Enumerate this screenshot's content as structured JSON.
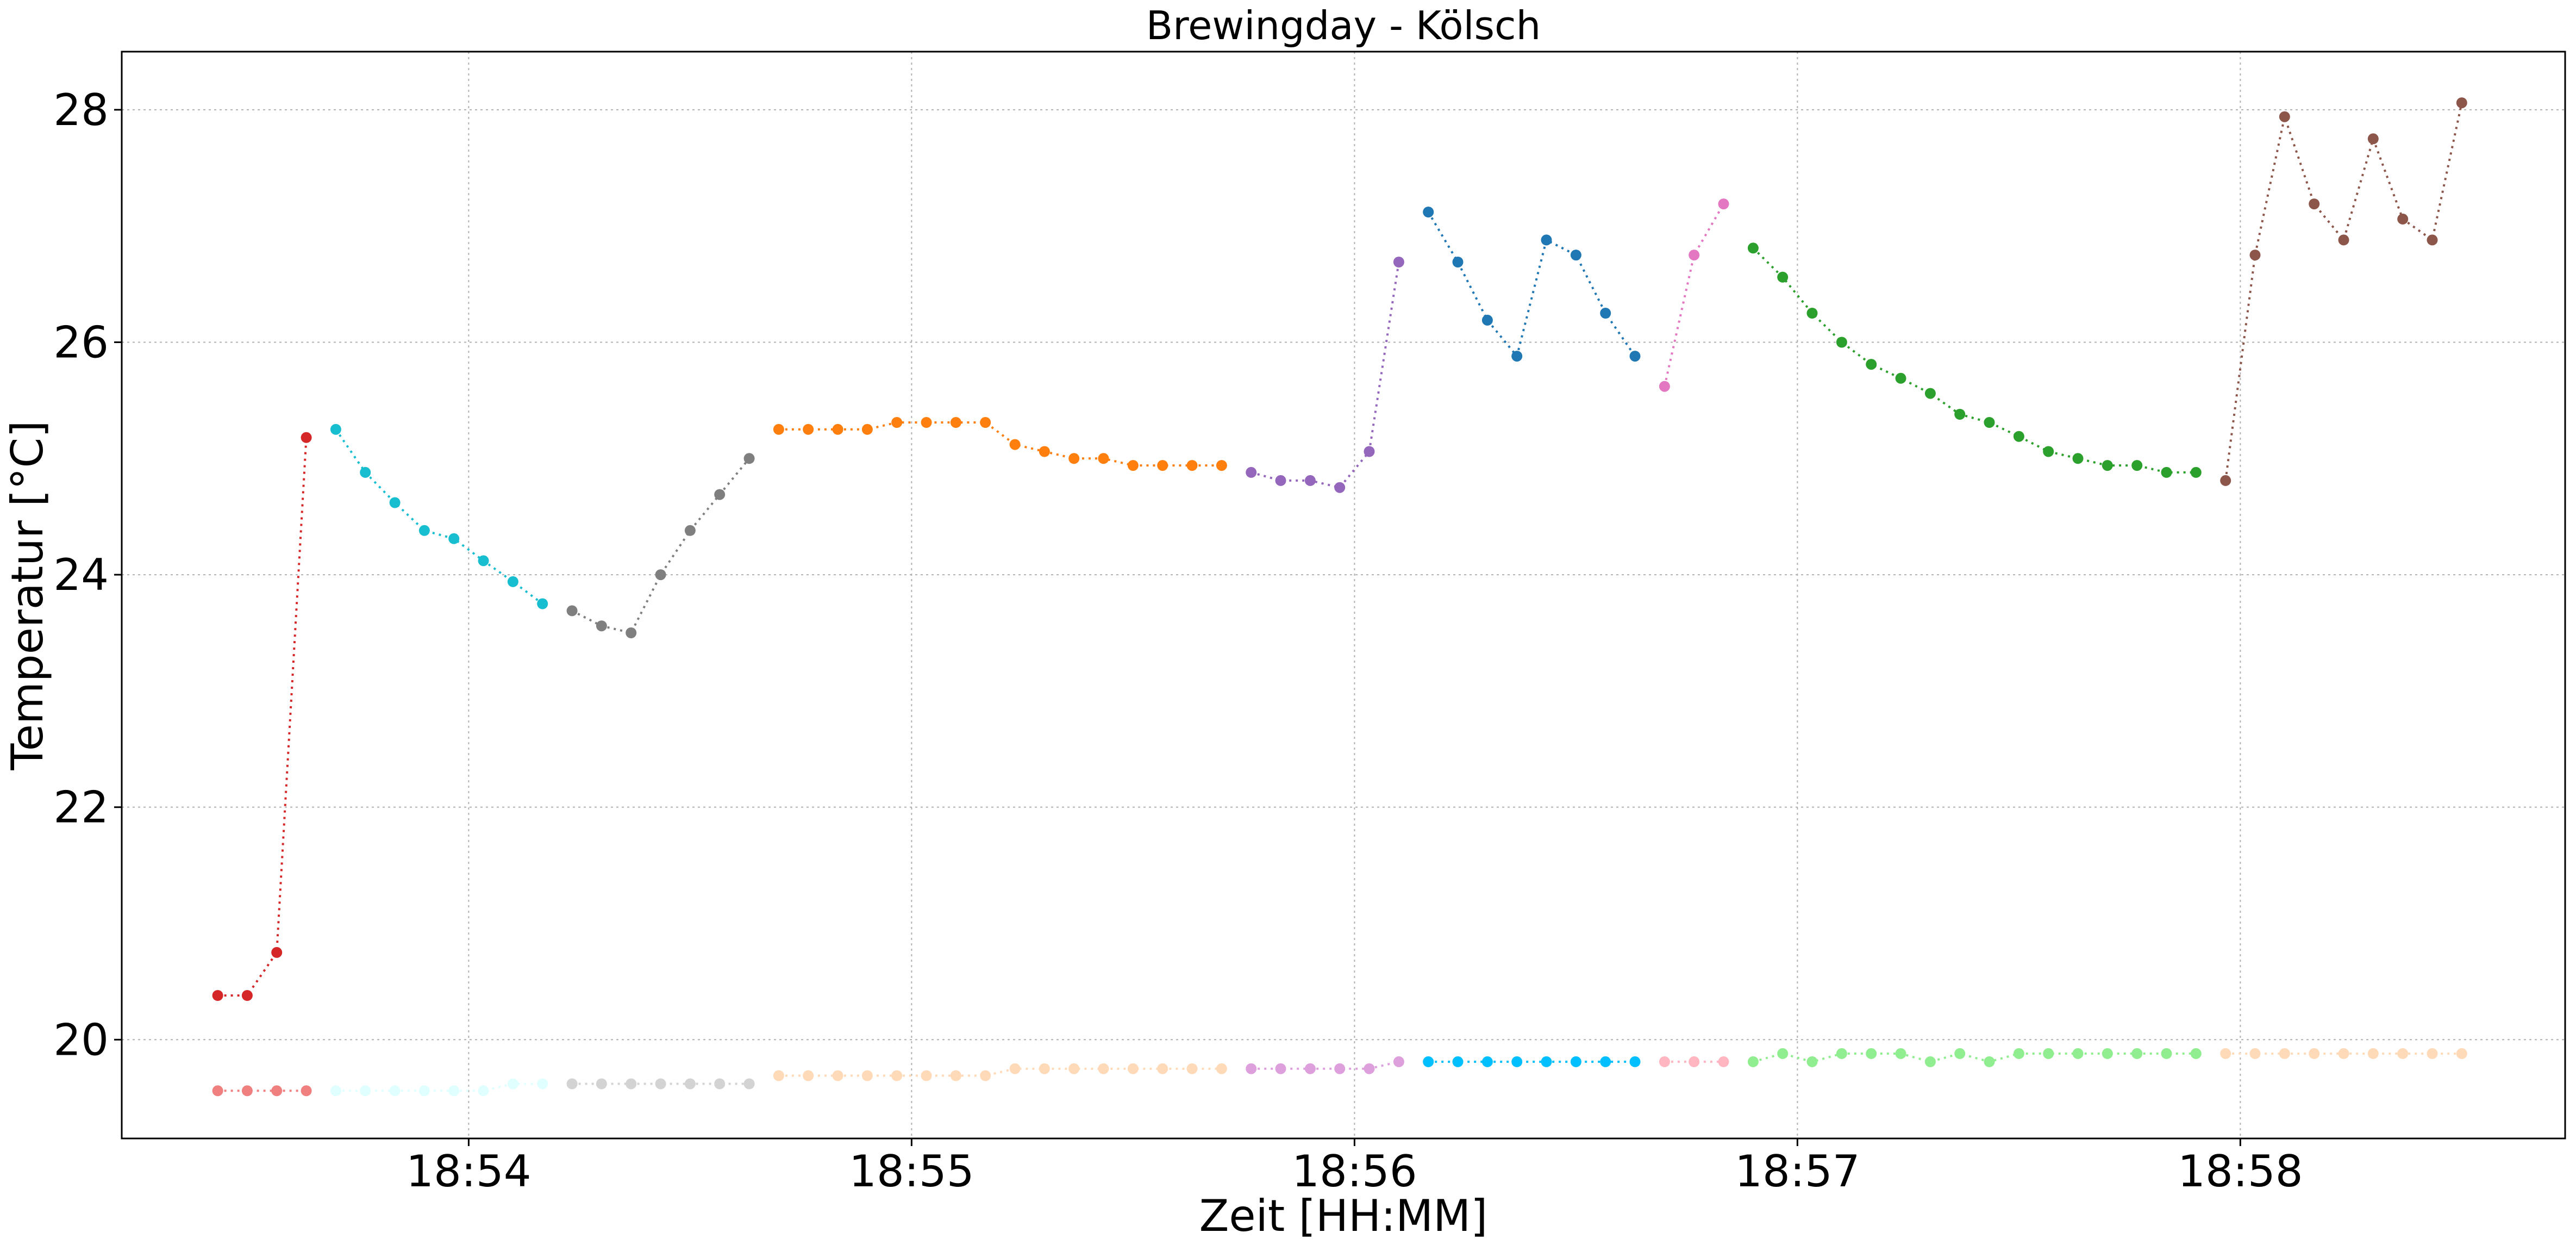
{
  "chart_data": {
    "type": "line",
    "title": "Brewingday - Kölsch",
    "xlabel": "Zeit [HH:MM]",
    "ylabel": "Temperatur [°C]",
    "x_unit": "HH:MM:SS",
    "xlim": [
      "18:53:13",
      "18:58:44"
    ],
    "ylim": [
      19.15,
      28.5
    ],
    "xticks": [
      "18:54",
      "18:55",
      "18:56",
      "18:57",
      "18:58"
    ],
    "yticks": [
      20,
      22,
      24,
      26,
      28
    ],
    "grid": true,
    "line_style": "dotted",
    "marker": "circle",
    "series": [
      {
        "color": "#d62728",
        "x": [
          "18:53:26",
          "18:53:30",
          "18:53:34",
          "18:53:38"
        ],
        "y": [
          20.38,
          20.38,
          20.75,
          25.18
        ]
      },
      {
        "color": "#17becf",
        "x": [
          "18:53:42",
          "18:53:46",
          "18:53:50",
          "18:53:54",
          "18:53:58",
          "18:54:02",
          "18:54:06",
          "18:54:10"
        ],
        "y": [
          25.25,
          24.88,
          24.62,
          24.38,
          24.31,
          24.12,
          23.94,
          23.75
        ]
      },
      {
        "color": "#7f7f7f",
        "x": [
          "18:54:14",
          "18:54:18",
          "18:54:22",
          "18:54:26",
          "18:54:30",
          "18:54:34",
          "18:54:38"
        ],
        "y": [
          23.69,
          23.56,
          23.5,
          24.0,
          24.38,
          24.69,
          25.0
        ]
      },
      {
        "color": "#ff7f0e",
        "x": [
          "18:54:42",
          "18:54:46",
          "18:54:50",
          "18:54:54",
          "18:54:58",
          "18:55:02",
          "18:55:06",
          "18:55:10",
          "18:55:14",
          "18:55:18",
          "18:55:22",
          "18:55:26",
          "18:55:30",
          "18:55:34",
          "18:55:38",
          "18:55:42"
        ],
        "y": [
          25.25,
          25.25,
          25.25,
          25.25,
          25.31,
          25.31,
          25.31,
          25.31,
          25.12,
          25.06,
          25.0,
          25.0,
          24.94,
          24.94,
          24.94,
          24.94
        ]
      },
      {
        "color": "#9467bd",
        "x": [
          "18:55:46",
          "18:55:50",
          "18:55:54",
          "18:55:58",
          "18:56:02",
          "18:56:06"
        ],
        "y": [
          24.88,
          24.81,
          24.81,
          24.75,
          25.06,
          26.69
        ]
      },
      {
        "color": "#1f77b4",
        "x": [
          "18:56:10",
          "18:56:14",
          "18:56:18",
          "18:56:22",
          "18:56:26",
          "18:56:30",
          "18:56:34",
          "18:56:38"
        ],
        "y": [
          27.12,
          26.69,
          26.19,
          25.88,
          26.88,
          26.75,
          26.25,
          25.88
        ]
      },
      {
        "color": "#e377c2",
        "x": [
          "18:56:42",
          "18:56:46",
          "18:56:50"
        ],
        "y": [
          25.62,
          26.75,
          27.19
        ]
      },
      {
        "color": "#2ca02c",
        "x": [
          "18:56:54",
          "18:56:58",
          "18:57:02",
          "18:57:06",
          "18:57:10",
          "18:57:14",
          "18:57:18",
          "18:57:22",
          "18:57:26",
          "18:57:30",
          "18:57:34",
          "18:57:38",
          "18:57:42",
          "18:57:46",
          "18:57:50",
          "18:57:54"
        ],
        "y": [
          26.81,
          26.56,
          26.25,
          26.0,
          25.81,
          25.69,
          25.56,
          25.38,
          25.31,
          25.19,
          25.06,
          25.0,
          24.94,
          24.94,
          24.88,
          24.88
        ]
      },
      {
        "color": "#8c564b",
        "x": [
          "18:57:58",
          "18:58:02",
          "18:58:06",
          "18:58:10",
          "18:58:14",
          "18:58:18",
          "18:58:22",
          "18:58:26",
          "18:58:30"
        ],
        "y": [
          24.81,
          26.75,
          27.94,
          27.19,
          26.88,
          27.75,
          27.06,
          26.88,
          28.06
        ]
      },
      {
        "color": "#f08080",
        "x": [
          "18:53:26",
          "18:53:30",
          "18:53:34",
          "18:53:38"
        ],
        "y": [
          19.56,
          19.56,
          19.56,
          19.56
        ]
      },
      {
        "color": "#e0ffff",
        "x": [
          "18:53:42",
          "18:53:46",
          "18:53:50",
          "18:53:54",
          "18:53:58",
          "18:54:02",
          "18:54:06",
          "18:54:10"
        ],
        "y": [
          19.56,
          19.56,
          19.56,
          19.56,
          19.56,
          19.56,
          19.62,
          19.62
        ]
      },
      {
        "color": "#d3d3d3",
        "x": [
          "18:54:14",
          "18:54:18",
          "18:54:22",
          "18:54:26",
          "18:54:30",
          "18:54:34",
          "18:54:38"
        ],
        "y": [
          19.62,
          19.62,
          19.62,
          19.62,
          19.62,
          19.62,
          19.62
        ]
      },
      {
        "color": "#ffdab9",
        "x": [
          "18:54:42",
          "18:54:46",
          "18:54:50",
          "18:54:54",
          "18:54:58",
          "18:55:02",
          "18:55:06",
          "18:55:10",
          "18:55:14",
          "18:55:18",
          "18:55:22",
          "18:55:26",
          "18:55:30",
          "18:55:34",
          "18:55:38",
          "18:55:42"
        ],
        "y": [
          19.69,
          19.69,
          19.69,
          19.69,
          19.69,
          19.69,
          19.69,
          19.69,
          19.75,
          19.75,
          19.75,
          19.75,
          19.75,
          19.75,
          19.75,
          19.75
        ]
      },
      {
        "color": "#dda0dd",
        "x": [
          "18:55:46",
          "18:55:50",
          "18:55:54",
          "18:55:58",
          "18:56:02",
          "18:56:06"
        ],
        "y": [
          19.75,
          19.75,
          19.75,
          19.75,
          19.75,
          19.81
        ]
      },
      {
        "color": "#00bfff",
        "x": [
          "18:56:10",
          "18:56:14",
          "18:56:18",
          "18:56:22",
          "18:56:26",
          "18:56:30",
          "18:56:34",
          "18:56:38"
        ],
        "y": [
          19.81,
          19.81,
          19.81,
          19.81,
          19.81,
          19.81,
          19.81,
          19.81
        ]
      },
      {
        "color": "#ffb6c1",
        "x": [
          "18:56:42",
          "18:56:46",
          "18:56:50"
        ],
        "y": [
          19.81,
          19.81,
          19.81
        ]
      },
      {
        "color": "#90ee90",
        "x": [
          "18:56:54",
          "18:56:58",
          "18:57:02",
          "18:57:06",
          "18:57:10",
          "18:57:14",
          "18:57:18",
          "18:57:22",
          "18:57:26",
          "18:57:30",
          "18:57:34",
          "18:57:38",
          "18:57:42",
          "18:57:46",
          "18:57:50",
          "18:57:54"
        ],
        "y": [
          19.81,
          19.88,
          19.81,
          19.88,
          19.88,
          19.88,
          19.81,
          19.88,
          19.81,
          19.88,
          19.88,
          19.88,
          19.88,
          19.88,
          19.88,
          19.88
        ]
      },
      {
        "color": "#ffdab9",
        "x": [
          "18:57:58",
          "18:58:02",
          "18:58:06",
          "18:58:10",
          "18:58:14",
          "18:58:18",
          "18:58:22",
          "18:58:26",
          "18:58:30"
        ],
        "y": [
          19.88,
          19.88,
          19.88,
          19.88,
          19.88,
          19.88,
          19.88,
          19.88,
          19.88
        ]
      }
    ]
  }
}
